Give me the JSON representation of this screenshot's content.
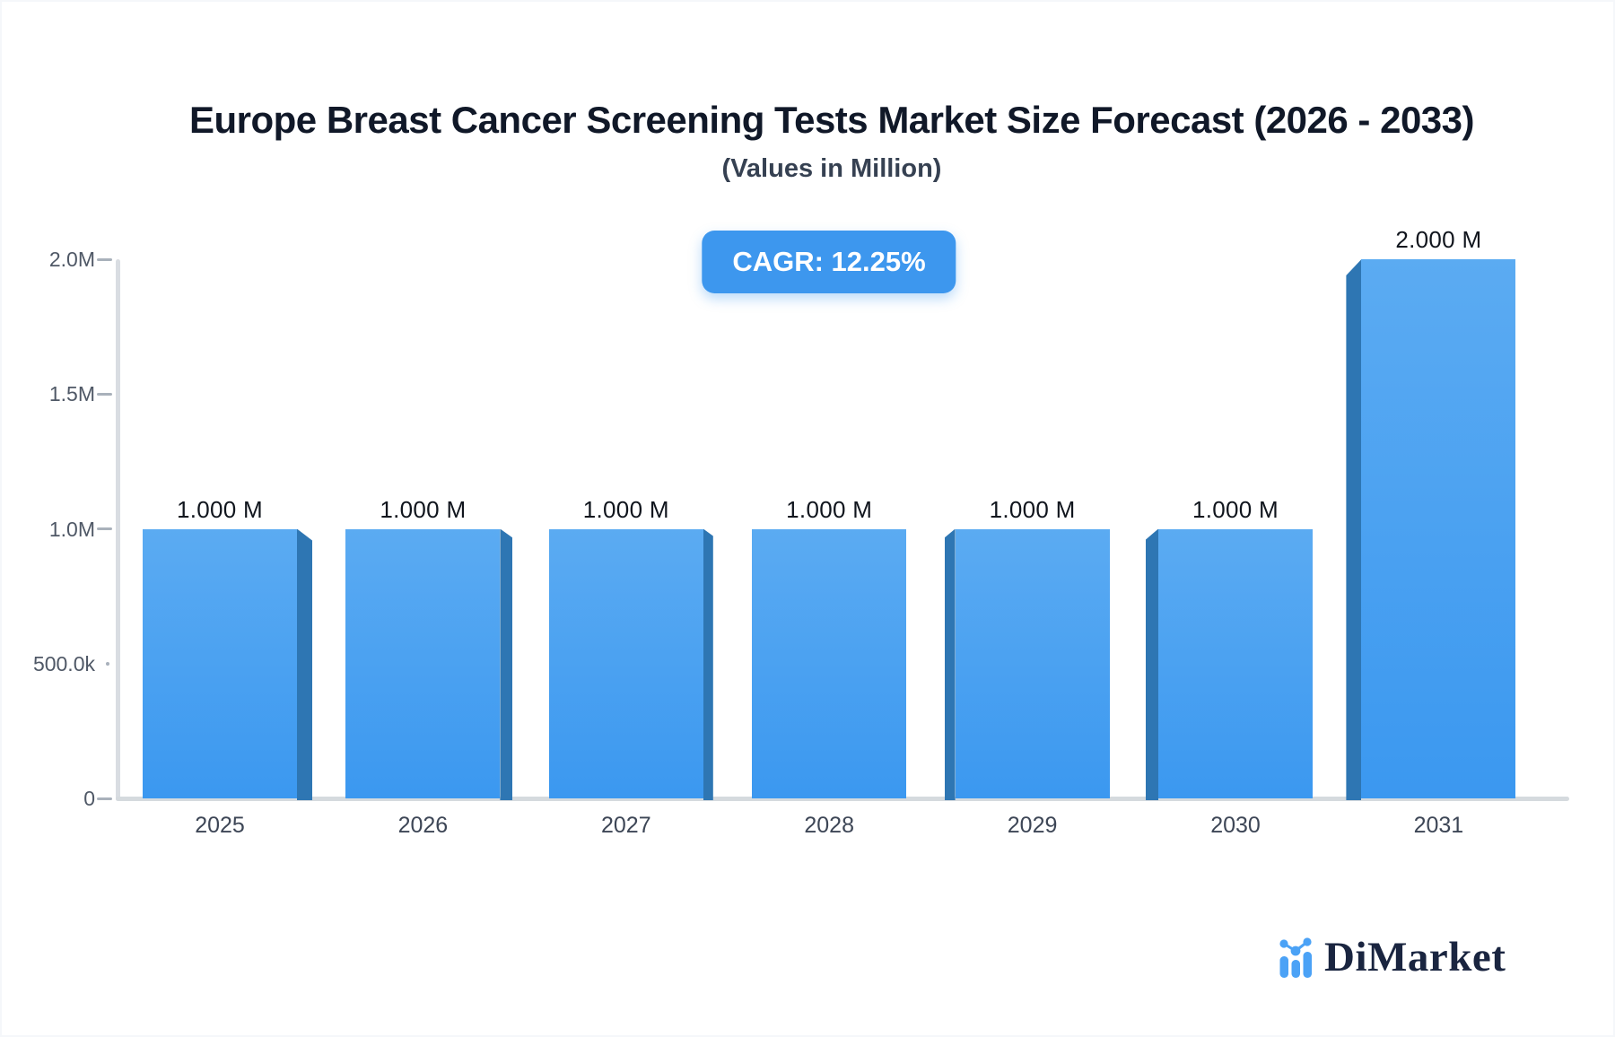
{
  "header": {
    "title": "Europe Breast Cancer Screening Tests Market Size Forecast (2026 - 2033)",
    "subtitle": "(Values in Million)",
    "cagr_label": "CAGR: 12.25%"
  },
  "chart_data": {
    "type": "bar",
    "title": "Europe Breast Cancer Screening Tests Market Size Forecast (2026 - 2033)",
    "subtitle": "(Values in Million)",
    "unit": "Million",
    "categories": [
      "2025",
      "2026",
      "2027",
      "2028",
      "2029",
      "2030",
      "2031"
    ],
    "values": [
      1.0,
      1.0,
      1.0,
      1.0,
      1.0,
      1.0,
      2.0
    ],
    "data_labels": [
      "1.000 M",
      "1.000 M",
      "1.000 M",
      "1.000 M",
      "1.000 M",
      "1.000 M",
      "2.000 M"
    ],
    "y_ticks": [
      {
        "label": "2.0M",
        "value": 2.0
      },
      {
        "label": "1.5M",
        "value": 1.5
      },
      {
        "label": "1.0M",
        "value": 1.0
      },
      {
        "label": "500.0k",
        "value": 0.5
      },
      {
        "label": "0",
        "value": 0
      }
    ],
    "ylim": [
      0,
      2.0
    ],
    "xlabel": "",
    "ylabel": "",
    "grid": false,
    "legend": false,
    "annotations": [
      "CAGR: 12.25%"
    ]
  },
  "branding": {
    "name": "DiMarket",
    "icon": "dimarket-bar-chart-logo-icon"
  },
  "colors": {
    "bar_top": "#5babf2",
    "bar_bottom": "#3b98f0",
    "bar_side": "#2e76b3",
    "badge_bg": "#3d97ee",
    "badge_text": "#ffffff",
    "logo_blue": "#4ba2f6",
    "logo_text": "#1a2540",
    "axis_line": "#d9dde2"
  }
}
